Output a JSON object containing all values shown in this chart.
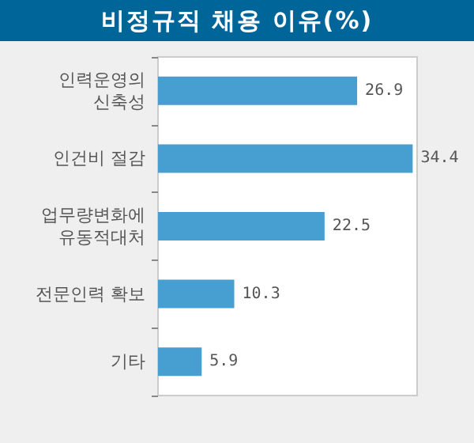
{
  "chart_data": {
    "type": "bar",
    "orientation": "horizontal",
    "title": "비정규직 채용 이유(%)",
    "categories": [
      "인력운영의\n신축성",
      "인건비 절감",
      "업무량변화에\n유동적대처",
      "전문인력 확보",
      "기타"
    ],
    "values": [
      26.9,
      34.4,
      22.5,
      10.3,
      5.9
    ],
    "color": "#479fd1",
    "data_labels": true
  }
}
